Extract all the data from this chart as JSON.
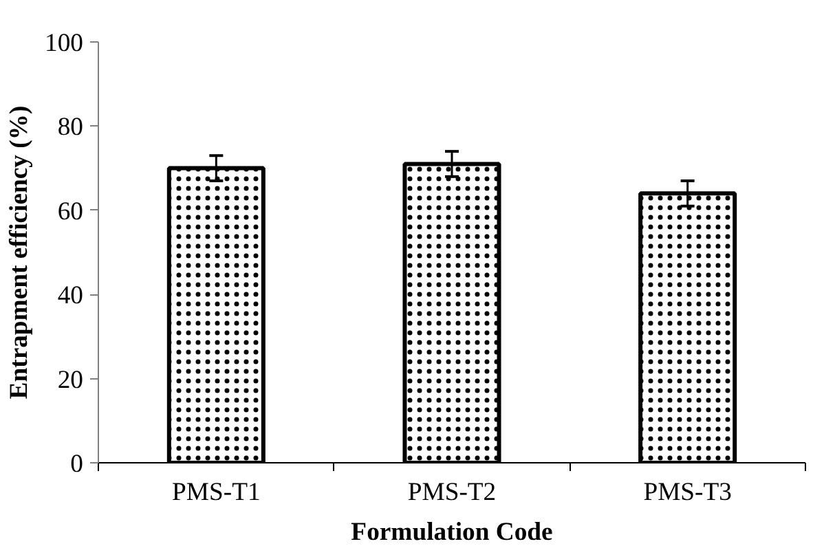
{
  "chart_data": {
    "type": "bar",
    "xlabel": "Formulation Code",
    "ylabel": "Entrapment efficiency (%)",
    "categories": [
      "PMS-T1",
      "PMS-T2",
      "PMS-T3"
    ],
    "values": [
      70,
      71,
      64
    ],
    "errors": [
      3,
      3,
      3
    ],
    "color": "#000000",
    "ylim": [
      0,
      100
    ],
    "yticks": [
      0,
      20,
      40,
      60,
      80,
      100
    ],
    "grid": false
  }
}
